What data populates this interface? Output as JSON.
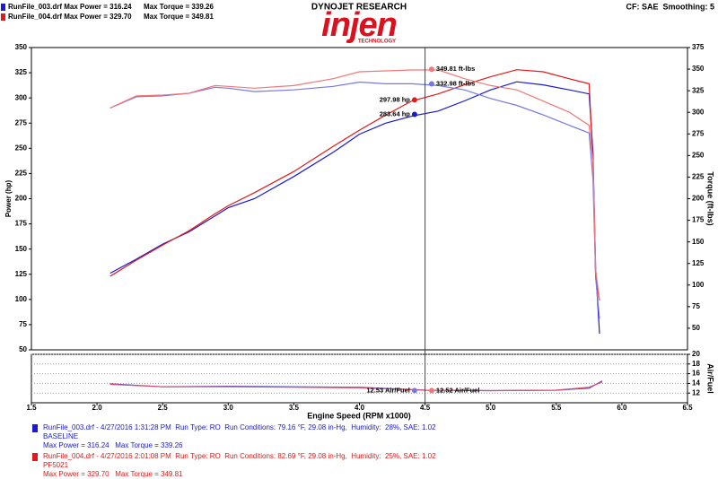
{
  "header": {
    "brand": "DYNOJET RESEARCH",
    "logo": "injen",
    "logo_sub": "TECHNOLOGY",
    "settings": "CF: SAE  Smoothing: 5",
    "legend": [
      {
        "text": "RunFile_003.drf Max Power = 316.24",
        "torque": "Max Torque = 339.26",
        "color": "#1a1ad0"
      },
      {
        "text": "RunFile_004.drf Max Power = 329.70",
        "torque": "Max Torque = 349.81",
        "color": "#e01a1a"
      }
    ]
  },
  "footer": {
    "runs": [
      {
        "summary": "RunFile_003.drf - 4/27/2016 1:31:28 PM  Run Type: RO  Run Conditions: 79.16 °F, 29.08 in-Hg,  Humidity:  28%, SAE: 1.02",
        "note": "BASELINE",
        "max": "Max Power = 316.24   Max Torque = 339.26",
        "color": "#1a1ad0"
      },
      {
        "summary": "RunFile_004.drf - 4/27/2016 2:01:08 PM  Run Type: RO  Run Conditions: 82.69 °F, 29.08 in-Hg,  Humidity:  25%, SAE: 1.02",
        "note": "PF5021",
        "max": "Max Power = 329.70   Max Torque = 349.81",
        "color": "#e01a1a"
      }
    ]
  },
  "chart_data": [
    {
      "type": "line",
      "ylabel": "Power (hp)",
      "y2label": "Torque (ft-lbs)",
      "xlim": [
        1.5,
        6.5
      ],
      "ylim": [
        50,
        350
      ],
      "yticks": [
        50,
        75,
        100,
        125,
        150,
        175,
        200,
        225,
        250,
        275,
        300,
        325,
        350
      ],
      "y2lim": [
        25,
        375
      ],
      "y2ticks": [
        50,
        75,
        100,
        125,
        150,
        175,
        200,
        225,
        250,
        275,
        300,
        325,
        350,
        375
      ],
      "cursor_x": 4.5,
      "x": [
        2.1,
        2.3,
        2.5,
        2.7,
        2.9,
        3.0,
        3.2,
        3.5,
        3.8,
        4.0,
        4.2,
        4.4,
        4.6,
        4.8,
        5.0,
        5.2,
        5.4,
        5.6,
        5.75,
        5.78,
        5.8,
        5.83
      ],
      "series": [
        {
          "color": "#1a1ad0",
          "values": [
            126,
            140,
            155,
            167,
            183,
            191,
            200,
            222,
            246,
            264,
            275,
            282,
            287,
            297,
            308,
            316,
            313,
            308,
            304,
            246,
            130,
            66
          ]
        },
        {
          "color": "#e01a1a",
          "values": [
            123,
            139,
            154,
            168,
            185,
            193,
            206,
            227,
            252,
            268,
            283,
            297,
            304,
            313,
            321,
            328,
            326,
            319,
            314,
            237,
            121,
            99
          ]
        },
        {
          "color": "#7878e4",
          "axis": "y2",
          "values": [
            305,
            318,
            319,
            322,
            329,
            328,
            324,
            326,
            330,
            335,
            333,
            333,
            331,
            326,
            316,
            308,
            297,
            285,
            276,
            222,
            108,
            61
          ]
        },
        {
          "color": "#f07878",
          "axis": "y2",
          "values": [
            305,
            319,
            320,
            322,
            331,
            330,
            328,
            331,
            339,
            347,
            348,
            349,
            349,
            339,
            331,
            326,
            313,
            300,
            285,
            243,
            118,
            82
          ]
        }
      ],
      "readouts": [
        {
          "x": 4.55,
          "value": 349.81,
          "label": "349.81 ft-lbs",
          "axis": "y2",
          "color": "#f07878"
        },
        {
          "x": 4.55,
          "value": 332.98,
          "label": "332.98 ft-lbs",
          "axis": "y2",
          "color": "#7878e4"
        },
        {
          "x": 4.42,
          "value": 297.98,
          "label": "297.98 hp",
          "color": "#e01a1a"
        },
        {
          "x": 4.42,
          "value": 283.64,
          "label": "283.64 hp",
          "color": "#1a1ad0"
        }
      ]
    },
    {
      "type": "line",
      "y2label": "Air/Fuel",
      "xlabel": "Engine Speed (RPM x1000)",
      "grid": true,
      "xlim": [
        1.5,
        6.5
      ],
      "xticks": [
        1.5,
        {
          "value": 2,
          "label": "2.0"
        },
        2.5,
        {
          "value": 3,
          "label": "3.0"
        },
        3.5,
        {
          "value": 4,
          "label": "4.0"
        },
        4.5,
        {
          "value": 5,
          "label": "5.0"
        },
        5.5,
        {
          "value": 6,
          "label": "6.0"
        },
        6.5
      ],
      "y2lim": [
        10,
        20
      ],
      "y2ticks": [
        12,
        14,
        16,
        18,
        20
      ],
      "x": [
        2.1,
        2.5,
        3.0,
        3.5,
        4.0,
        4.5,
        5.0,
        5.5,
        5.75,
        5.85
      ],
      "series": [
        {
          "color": "#5050c8",
          "axis": "y2",
          "values": [
            13.9,
            13.3,
            13.4,
            13.3,
            13.2,
            12.6,
            12.5,
            12.6,
            13.0,
            14.5
          ]
        },
        {
          "color": "#d85070",
          "axis": "y2",
          "values": [
            13.8,
            13.3,
            13.3,
            13.2,
            13.1,
            12.6,
            12.5,
            12.6,
            13.2,
            14.3
          ]
        }
      ],
      "readouts": [
        {
          "x": 4.42,
          "value": 12.53,
          "label": "12.53 Air/Fuel",
          "axis": "y2",
          "color": "#7878e4"
        },
        {
          "x": 4.55,
          "value": 12.52,
          "label": "12.52 Air/Fuel",
          "axis": "y2",
          "color": "#f07878"
        }
      ]
    }
  ]
}
